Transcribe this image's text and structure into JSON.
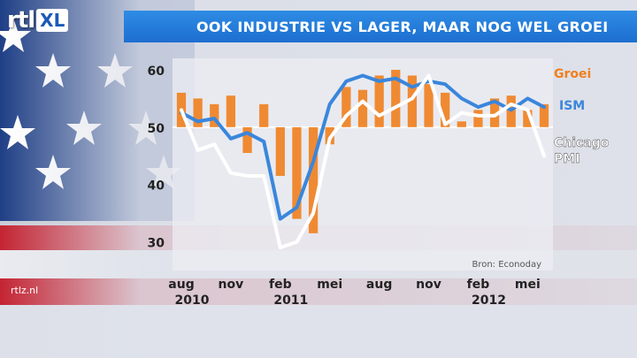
{
  "brand": {
    "logo_text": "rtl",
    "logo_badge": "XL",
    "website": "rtlz.nl"
  },
  "title": "OOK INDUSTRIE VS LAGER, MAAR NOG WEL GROEI",
  "colors": {
    "bars": "#f07f1d",
    "ism": "#3a86dc",
    "chicago": "#ffffff",
    "title_bg": "#1f78dc",
    "growth_label": "#f07f1d",
    "ism_label": "#3a86dc"
  },
  "chart_data": {
    "type": "bar+line",
    "title": "OOK INDUSTRIE VS LAGER, MAAR NOG WEL GROEI",
    "source": "Bron: Econoday",
    "ylim": [
      25,
      62
    ],
    "yticks": [
      30,
      40,
      50,
      60
    ],
    "baseline": 50,
    "xticks": [
      {
        "index": 0,
        "month": "aug",
        "year": "2010"
      },
      {
        "index": 3,
        "month": "nov",
        "year": ""
      },
      {
        "index": 6,
        "month": "feb",
        "year": "2011"
      },
      {
        "index": 9,
        "month": "mei",
        "year": ""
      },
      {
        "index": 12,
        "month": "aug",
        "year": ""
      },
      {
        "index": 15,
        "month": "nov",
        "year": ""
      },
      {
        "index": 18,
        "month": "feb",
        "year": "2012"
      },
      {
        "index": 21,
        "month": "mei",
        "year": ""
      }
    ],
    "series": [
      {
        "name": "Groei",
        "type": "bar",
        "values": [
          56.0,
          55.0,
          54.0,
          55.5,
          45.5,
          54.0,
          41.5,
          34.0,
          31.5,
          47.0,
          57.0,
          56.5,
          59.0,
          60.0,
          59.0,
          57.5,
          56.0,
          51.0,
          53.0,
          55.0,
          55.5,
          53.0,
          54.0
        ]
      },
      {
        "name": "ISM",
        "type": "line",
        "values": [
          52.5,
          51.0,
          51.5,
          48.0,
          49.0,
          47.5,
          34.0,
          36.0,
          44.0,
          54.0,
          58.0,
          59.0,
          58.0,
          58.5,
          57.0,
          58.0,
          57.5,
          55.0,
          53.5,
          54.5,
          53.0,
          55.0,
          53.5
        ]
      },
      {
        "name": "Chicago PMI",
        "type": "line",
        "values": [
          53.0,
          46.0,
          47.0,
          42.0,
          41.5,
          41.5,
          29.0,
          30.0,
          35.0,
          48.0,
          52.0,
          54.5,
          52.0,
          53.5,
          55.0,
          59.0,
          50.5,
          52.5,
          52.0,
          52.0,
          54.0,
          53.0,
          45.0
        ]
      }
    ],
    "legend": [
      {
        "label": "Groei",
        "series": "Groei"
      },
      {
        "label": "ISM",
        "series": "ISM"
      },
      {
        "label": "Chicago\nPMI",
        "series": "Chicago PMI"
      }
    ]
  }
}
